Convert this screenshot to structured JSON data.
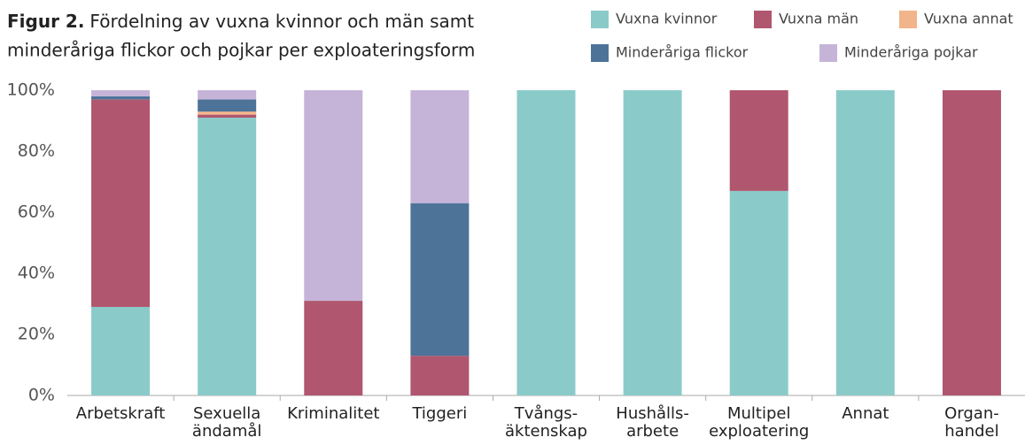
{
  "chart_data": {
    "type": "stacked_bar",
    "title_label": "Figur 2.",
    "title": [
      "Fördelning av vuxna kvinnor och män samt",
      "minderåriga flickor och pojkar per exploateringsform"
    ],
    "categories": [
      [
        "Arbetskraft"
      ],
      [
        "Sexuella",
        "ändamål"
      ],
      [
        "Kriminalitet"
      ],
      [
        "Tiggeri"
      ],
      [
        "Tvångs-",
        "äktenskap"
      ],
      [
        "Hushålls-",
        "arbete"
      ],
      [
        "Multipel",
        "exploatering"
      ],
      [
        "Annat"
      ],
      [
        "Organ-",
        "handel"
      ]
    ],
    "series": [
      {
        "name": "Vuxna kvinnor",
        "color": "#8acbc9",
        "values": [
          29,
          91,
          0,
          0,
          100,
          100,
          67,
          100,
          0
        ]
      },
      {
        "name": "Vuxna män",
        "color": "#b0566f",
        "values": [
          68,
          1,
          31,
          13,
          0,
          0,
          33,
          0,
          100
        ]
      },
      {
        "name": "Vuxna annat",
        "color": "#f2b48a",
        "values": [
          0,
          1,
          0,
          0,
          0,
          0,
          0,
          0,
          0
        ]
      },
      {
        "name": "Minderåriga flickor",
        "color": "#4d7399",
        "values": [
          1,
          4,
          0,
          50,
          0,
          0,
          0,
          0,
          0
        ]
      },
      {
        "name": "Minderåriga pojkar",
        "color": "#c5b4d8",
        "values": [
          2,
          3,
          69,
          37,
          0,
          0,
          0,
          0,
          0
        ]
      }
    ],
    "ylim": [
      0,
      100
    ],
    "yticks": [
      {
        "value": 0,
        "label": "0%"
      },
      {
        "value": 20,
        "label": "20%"
      },
      {
        "value": 40,
        "label": "40%"
      },
      {
        "value": 60,
        "label": "60%"
      },
      {
        "value": 80,
        "label": "80%"
      },
      {
        "value": 100,
        "label": "100%"
      }
    ],
    "grid": false,
    "legend": "top-right"
  }
}
